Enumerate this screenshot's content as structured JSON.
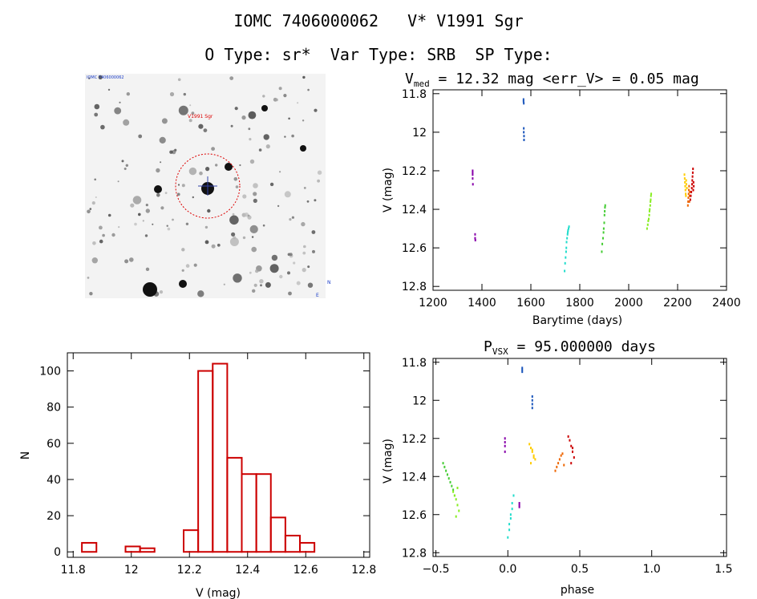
{
  "header": {
    "line1": "IOMC 7406000062   V* V1991 Sgr",
    "line2": "O Type: sr*  Var Type: SRB  SP Type:"
  },
  "sky_image": {
    "marker_label": "V1991 Sgr",
    "corner_labels": [
      "IOMC 7406000062",
      "N",
      "E"
    ]
  },
  "colors": {
    "histogram": "#cc0000",
    "series": [
      "#8800aa",
      "#1a55bb",
      "#22ddcc",
      "#44cc33",
      "#88ee22",
      "#ffcc00",
      "#ee6600",
      "#cc0000"
    ]
  },
  "chart_data": [
    {
      "type": "scatter",
      "title_prefix": "V",
      "title_sub": "med",
      "title_rest": " = 12.32 mag <err_V> = 0.05 mag",
      "xlabel": "Barytime (days)",
      "ylabel": "V (mag)",
      "xlim": [
        1200,
        2400
      ],
      "ylim": [
        12.82,
        11.78
      ],
      "xticks": [
        1200,
        1400,
        1600,
        1800,
        2000,
        2200,
        2400
      ],
      "yticks": [
        11.8,
        12.0,
        12.2,
        12.4,
        12.6,
        12.8
      ],
      "series": [
        {
          "name": "season1",
          "color": "#8800aa",
          "x": [
            1362,
            1362,
            1362,
            1362,
            1363,
            1372,
            1372,
            1373
          ],
          "y": [
            12.2,
            12.21,
            12.22,
            12.24,
            12.27,
            12.53,
            12.55,
            12.56
          ]
        },
        {
          "name": "season2",
          "color": "#1a55bb",
          "x": [
            1570,
            1570,
            1571,
            1571,
            1571,
            1572,
            1572
          ],
          "y": [
            11.83,
            11.84,
            11.85,
            11.98,
            12.0,
            12.02,
            12.04
          ]
        },
        {
          "name": "season3",
          "color": "#22ddcc",
          "x": [
            1738,
            1740,
            1742,
            1744,
            1745,
            1746,
            1748,
            1750,
            1751,
            1752,
            1754,
            1756
          ],
          "y": [
            12.72,
            12.68,
            12.65,
            12.62,
            12.6,
            12.57,
            12.55,
            12.53,
            12.52,
            12.51,
            12.5,
            12.49
          ]
        },
        {
          "name": "season4",
          "color": "#44cc33",
          "x": [
            1890,
            1892,
            1895,
            1897,
            1898,
            1900,
            1901,
            1902,
            1903,
            1904
          ],
          "y": [
            12.62,
            12.58,
            12.55,
            12.52,
            12.5,
            12.47,
            12.43,
            12.41,
            12.39,
            12.38
          ]
        },
        {
          "name": "season5",
          "color": "#88ee22",
          "x": [
            2075,
            2078,
            2080,
            2082,
            2084,
            2085,
            2086,
            2088,
            2089,
            2090,
            2091,
            2092
          ],
          "y": [
            12.5,
            12.48,
            12.46,
            12.45,
            12.43,
            12.41,
            12.4,
            12.38,
            12.36,
            12.35,
            12.33,
            12.32
          ]
        },
        {
          "name": "season6",
          "color": "#ffcc00",
          "x": [
            2228,
            2229,
            2230,
            2231,
            2232,
            2233,
            2234,
            2235,
            2236,
            2238
          ],
          "y": [
            12.22,
            12.24,
            12.26,
            12.28,
            12.3,
            12.32,
            12.33,
            12.25,
            12.27,
            12.29
          ]
        },
        {
          "name": "season7",
          "color": "#ee6600",
          "x": [
            2242,
            2243,
            2244,
            2245,
            2246,
            2247,
            2248,
            2249,
            2250
          ],
          "y": [
            12.38,
            12.36,
            12.34,
            12.32,
            12.3,
            12.28,
            12.36,
            12.33,
            12.31
          ]
        },
        {
          "name": "season8",
          "color": "#cc0000",
          "x": [
            2252,
            2254,
            2256,
            2258,
            2259,
            2260,
            2261,
            2262,
            2263,
            2264,
            2265,
            2266
          ],
          "y": [
            12.35,
            12.33,
            12.31,
            12.29,
            12.27,
            12.25,
            12.23,
            12.21,
            12.19,
            12.3,
            12.26,
            12.28
          ]
        }
      ]
    },
    {
      "type": "bar",
      "xlabel": "V (mag)",
      "ylabel": "N",
      "xlim": [
        11.78,
        12.82
      ],
      "ylim": [
        -3,
        110
      ],
      "xticks": [
        11.8,
        12.0,
        12.2,
        12.4,
        12.6,
        12.8
      ],
      "yticks": [
        0,
        20,
        40,
        60,
        80,
        100
      ],
      "bin_edges": [
        11.83,
        11.88,
        11.93,
        11.98,
        12.03,
        12.08,
        12.13,
        12.18,
        12.23,
        12.28,
        12.33,
        12.38,
        12.43,
        12.48,
        12.53,
        12.58,
        12.63,
        12.68,
        12.73
      ],
      "values": [
        5,
        0,
        0,
        3,
        2,
        0,
        0,
        12,
        100,
        104,
        52,
        43,
        43,
        19,
        9,
        5,
        0,
        0
      ]
    },
    {
      "type": "scatter",
      "title_prefix": "P",
      "title_sub": "VSX",
      "title_rest": " = 95.000000 days",
      "xlabel": "phase",
      "ylabel": "V (mag)",
      "xlim": [
        -0.52,
        1.52
      ],
      "ylim": [
        12.82,
        11.78
      ],
      "xticks": [
        -0.5,
        0.0,
        0.5,
        1.0,
        1.5
      ],
      "xtick_labels": [
        "−0.5",
        "0.0",
        "0.5",
        "1.0",
        "1.5"
      ],
      "yticks": [
        11.8,
        12.0,
        12.2,
        12.4,
        12.6,
        12.8
      ],
      "series": [
        {
          "name": "p1",
          "color": "#8800aa",
          "x": [
            -0.02,
            -0.02,
            -0.02,
            -0.02,
            0.08,
            0.08,
            0.08
          ],
          "y": [
            12.2,
            12.22,
            12.24,
            12.27,
            12.54,
            12.55,
            12.56
          ]
        },
        {
          "name": "p2",
          "color": "#1a55bb",
          "x": [
            0.1,
            0.1,
            0.1,
            0.17,
            0.17,
            0.17,
            0.17
          ],
          "y": [
            11.83,
            11.84,
            11.85,
            11.98,
            12.0,
            12.02,
            12.04
          ]
        },
        {
          "name": "p3",
          "color": "#22ddcc",
          "x": [
            0.0,
            0.01,
            0.01,
            0.02,
            0.02,
            0.03,
            0.03,
            0.04
          ],
          "y": [
            12.72,
            12.68,
            12.65,
            12.62,
            12.6,
            12.57,
            12.54,
            12.5
          ]
        },
        {
          "name": "p4",
          "color": "#44cc33",
          "x": [
            -0.45,
            -0.44,
            -0.43,
            -0.42,
            -0.41,
            -0.4,
            -0.39,
            -0.38,
            -0.37
          ],
          "y": [
            12.33,
            12.35,
            12.37,
            12.39,
            12.41,
            12.43,
            12.45,
            12.47,
            12.5
          ]
        },
        {
          "name": "p5",
          "color": "#88ee22",
          "x": [
            -0.38,
            -0.37,
            -0.36,
            -0.35,
            -0.34,
            -0.36,
            -0.35
          ],
          "y": [
            12.48,
            12.5,
            12.52,
            12.55,
            12.58,
            12.61,
            12.46
          ]
        },
        {
          "name": "p6",
          "color": "#ffcc00",
          "x": [
            0.15,
            0.16,
            0.17,
            0.18,
            0.19,
            0.16,
            0.17,
            0.18
          ],
          "y": [
            12.23,
            12.25,
            12.27,
            12.29,
            12.31,
            12.33,
            12.26,
            12.3
          ]
        },
        {
          "name": "p7",
          "color": "#ee6600",
          "x": [
            0.33,
            0.34,
            0.35,
            0.36,
            0.37,
            0.38,
            0.39
          ],
          "y": [
            12.37,
            12.35,
            12.33,
            12.31,
            12.29,
            12.28,
            12.34
          ]
        },
        {
          "name": "p8",
          "color": "#cc0000",
          "x": [
            0.42,
            0.43,
            0.44,
            0.45,
            0.46,
            0.44,
            0.45
          ],
          "y": [
            12.19,
            12.21,
            12.24,
            12.27,
            12.3,
            12.33,
            12.25
          ]
        }
      ]
    }
  ]
}
